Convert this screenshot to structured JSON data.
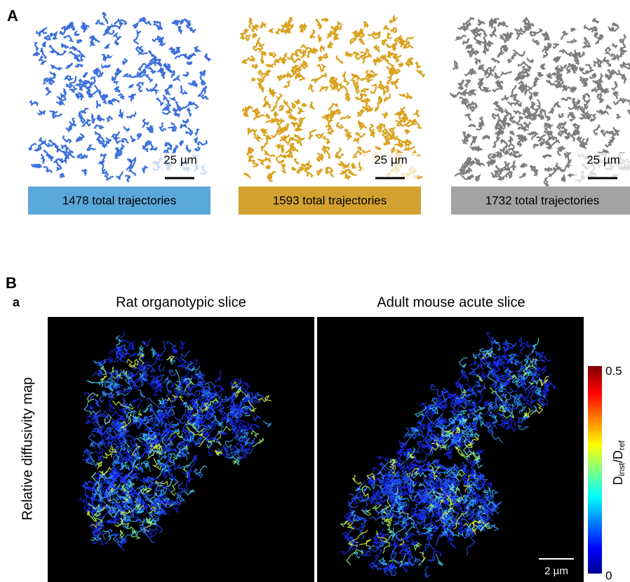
{
  "panel_a": {
    "label": "A",
    "maps": [
      {
        "scale_bar": "25 µm",
        "caption": "1478 total trajectories"
      },
      {
        "scale_bar": "25 µm",
        "caption": "1593 total trajectories"
      },
      {
        "scale_bar": "25 µm",
        "caption": "1732 total trajectories"
      }
    ]
  },
  "panel_b": {
    "label": "B",
    "sublabel": "a",
    "side_label": "Relative diffusivity map",
    "maps": [
      {
        "title": "Rat organotypic slice"
      },
      {
        "title": "Adult mouse acute slice",
        "scale_bar": "2 µm"
      }
    ],
    "colorbar": {
      "max_label": "0.5",
      "min_label": "0",
      "symbol": "D",
      "sub_top": "inst",
      "slash": "/D",
      "sub_bottom": "ref"
    }
  }
}
